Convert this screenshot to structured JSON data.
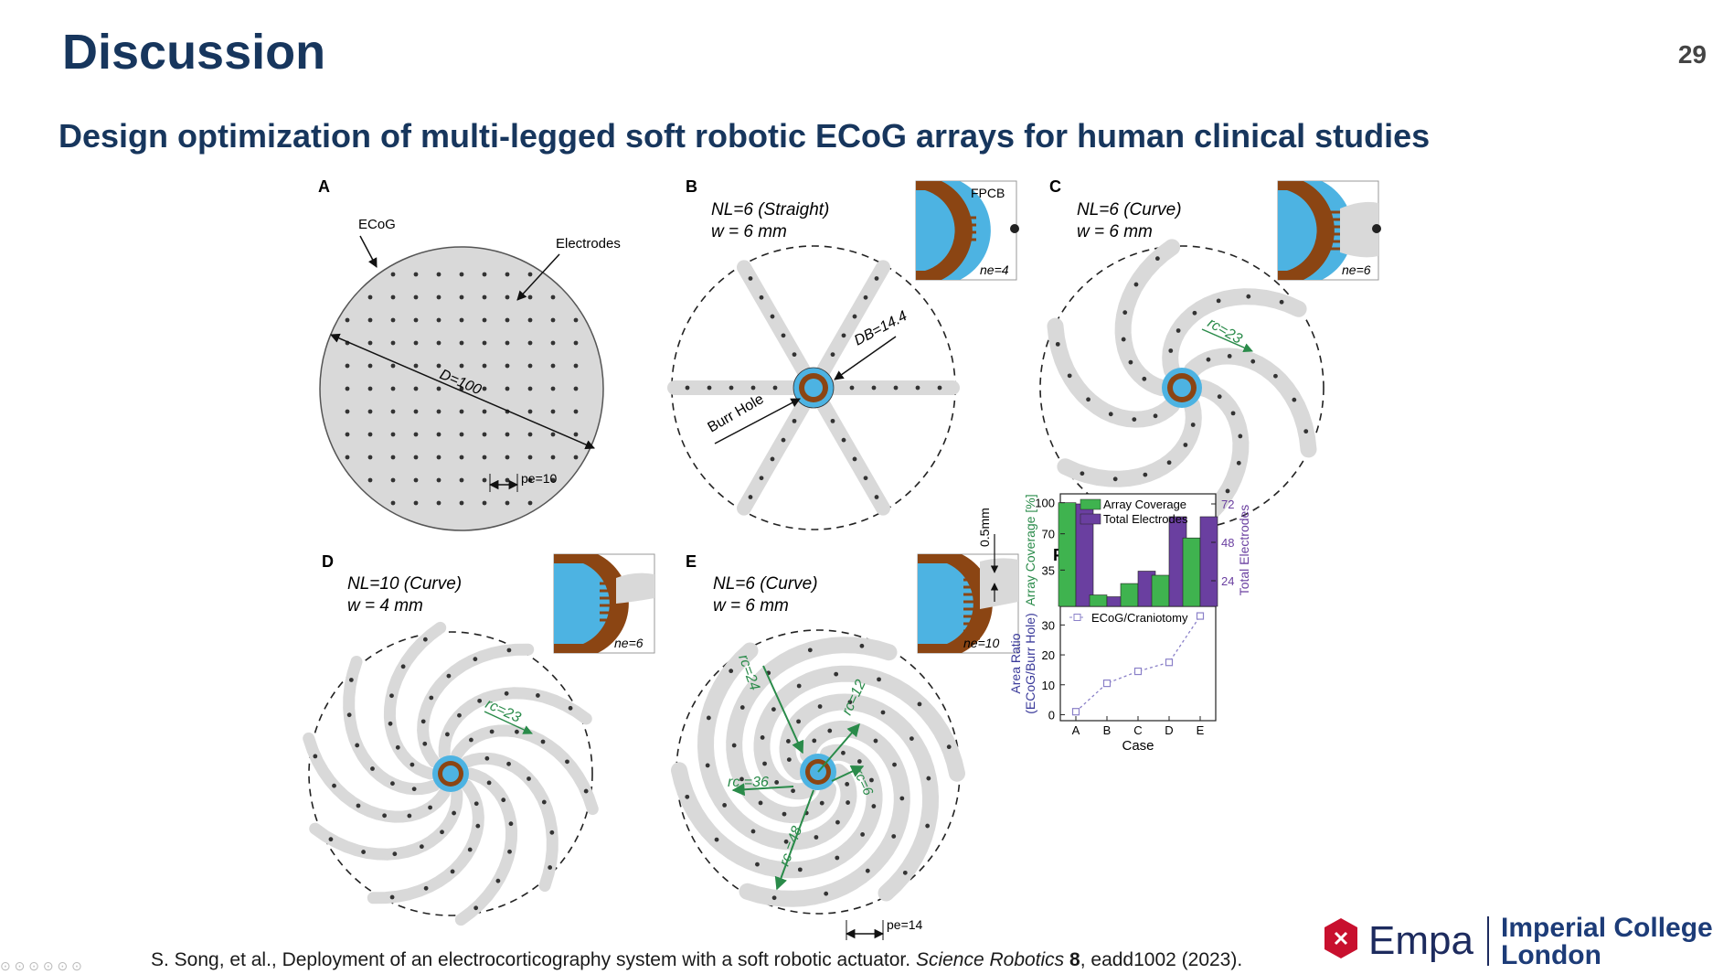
{
  "slide": {
    "title": "Discussion",
    "page_number": "29",
    "subtitle": "Design optimization of multi-legged soft robotic ECoG arrays for human clinical studies"
  },
  "figure": {
    "panels": {
      "A": {
        "letter": "A",
        "ecog": "ECoG",
        "electrodes": "Electrodes",
        "diameter": "D=100",
        "pitch": "pe=10"
      },
      "B": {
        "letter": "B",
        "legs": "NL=6 (Straight)",
        "width": "w = 6 mm",
        "fpcb": "FPCB",
        "db": "DB=14.4",
        "burr": "Burr Hole",
        "ne": "ne=4"
      },
      "C": {
        "letter": "C",
        "legs": "NL=6 (Curve)",
        "width": "w = 6 mm",
        "rc": "rc=23",
        "ne": "ne=6"
      },
      "D": {
        "letter": "D",
        "legs": "NL=10 (Curve)",
        "width": "w = 4 mm",
        "rc": "rc=23",
        "ne": "ne=6"
      },
      "E": {
        "letter": "E",
        "legs": "NL=6 (Curve)",
        "width": "w = 6 mm",
        "gap": "0.5mm",
        "ne": "ne=10",
        "rc24": "rc=24",
        "rc12": "rc=12",
        "rc36": "rc =36",
        "rc6": "rc=6",
        "rc48": "rc =48",
        "pitch": "pe=14"
      },
      "F": {
        "letter": "F"
      }
    }
  },
  "chart_data": [
    {
      "type": "bar",
      "categories": [
        "A",
        "B",
        "C",
        "D",
        "E"
      ],
      "series": [
        {
          "name": "Array Coverage",
          "axis": "left",
          "color": "#3fb34f",
          "values": [
            100,
            11,
            22,
            30,
            66
          ]
        },
        {
          "name": "Total Electrodes",
          "axis": "right",
          "color": "#6a3fa0",
          "values": [
            72,
            14,
            30,
            64,
            64
          ]
        }
      ],
      "ylabel_left": "Array Coverage [%]",
      "ylabel_right": "Total Electrodes",
      "left_ticks": [
        35,
        70,
        100
      ],
      "right_ticks": [
        24,
        48,
        72
      ],
      "ylim_left": [
        0,
        105
      ],
      "ylim_right": [
        8,
        76
      ],
      "legend": "top-right"
    },
    {
      "type": "line",
      "categories": [
        "A",
        "B",
        "C",
        "D",
        "E"
      ],
      "series": [
        {
          "name": "ECoG/Craniotomy",
          "color": "#8a80c8",
          "values": [
            1,
            10.5,
            14.5,
            17.5,
            33
          ]
        }
      ],
      "xlabel": "Case",
      "ylabel": "Area Ratio (ECoG/Burr Hole)",
      "ylabel_line1": "Area Ratio",
      "ylabel_line2": "(ECoG/Burr Hole)",
      "ticks": [
        0,
        10,
        20,
        30
      ],
      "ylim": [
        -2,
        35
      ],
      "legend": "top-left"
    }
  ],
  "citation": {
    "authors": "S. Song, et al., Deployment of an electrocorticography system with a soft robotic actuator.",
    "journal": "Science Robotics",
    "volume": "8",
    "rest": ", eadd1002 (2023)."
  },
  "logos": {
    "empa": "Empa",
    "imperial_line1": "Imperial College",
    "imperial_line2": "London"
  },
  "colors": {
    "title": "#17365d",
    "ecog_gray": "#d9d9d9",
    "burr_blue": "#4db3e2",
    "fpcb_brown": "#8b4513",
    "annot_green": "#2a8b4a"
  }
}
